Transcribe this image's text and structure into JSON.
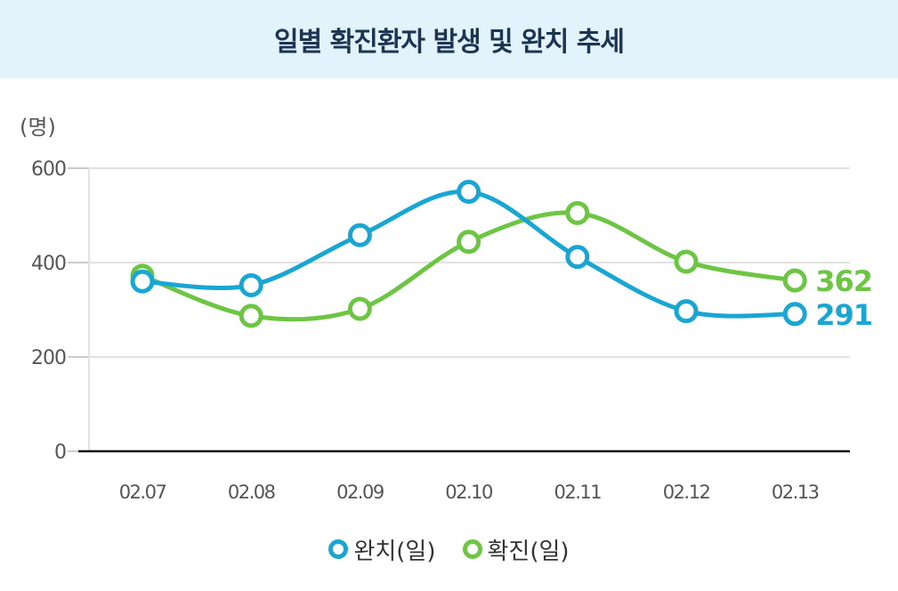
{
  "title": "일별 확진환자 발생 및 완치 추세",
  "unit_label": "(명)",
  "chart_data": {
    "type": "line",
    "categories": [
      "02.07",
      "02.08",
      "02.09",
      "02.10",
      "02.11",
      "02.12",
      "02.13"
    ],
    "ylim": [
      0,
      600
    ],
    "yticks": [
      0,
      200,
      400,
      600
    ],
    "ylabel": "(명)",
    "grid": true,
    "legend_position": "bottom",
    "series": [
      {
        "name": "완치(일)",
        "color": "#1aa6d2",
        "values": [
          360,
          352,
          458,
          550,
          412,
          297,
          291
        ],
        "end_label": "291"
      },
      {
        "name": "확진(일)",
        "color": "#6cc644",
        "values": [
          372,
          287,
          302,
          444,
          505,
          402,
          362
        ],
        "end_label": "362"
      }
    ]
  },
  "legend": [
    {
      "label": "완치(일)",
      "color": "#1aa6d2"
    },
    {
      "label": "확진(일)",
      "color": "#6cc644"
    }
  ]
}
